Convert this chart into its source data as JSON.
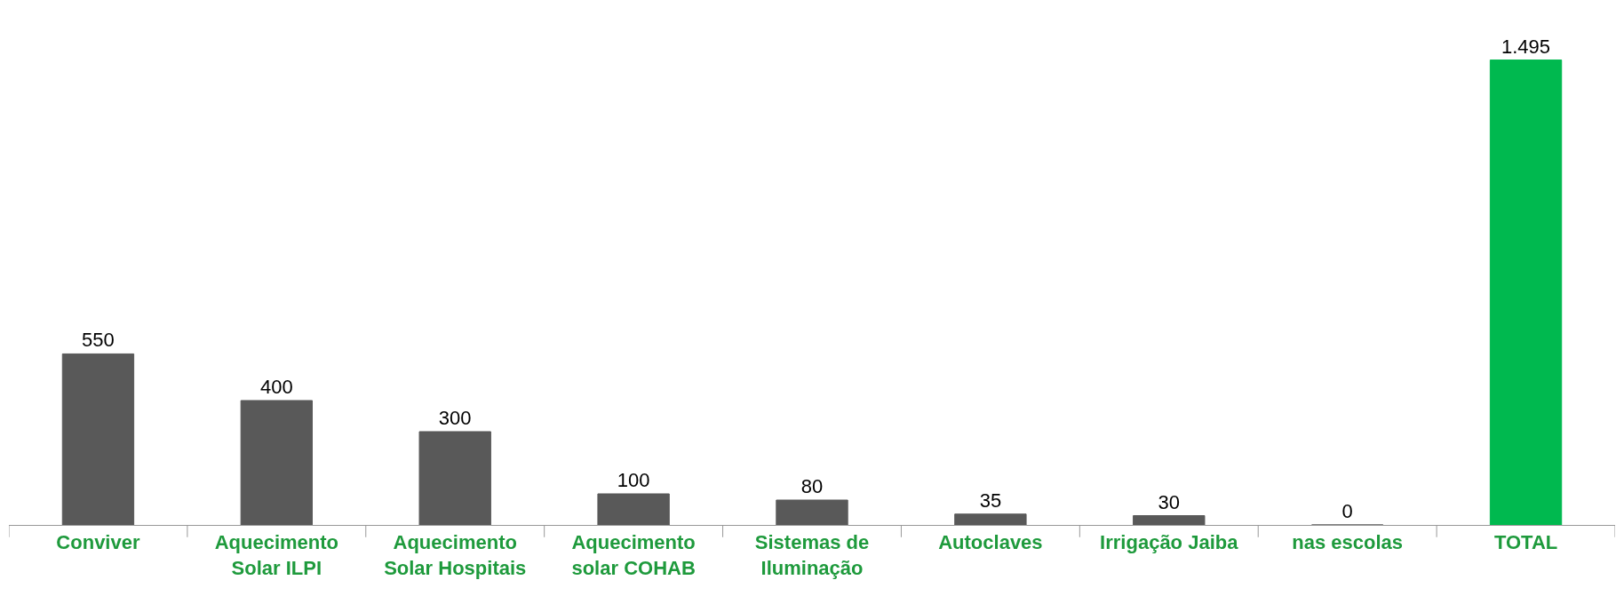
{
  "chart_data": {
    "type": "bar",
    "categories": [
      "Conviver",
      "Aquecimento Solar ILPI",
      "Aquecimento Solar Hospitais",
      "Aquecimento solar COHAB",
      "Sistemas de Iluminação",
      "Autoclaves",
      "Irrigação Jaiba",
      "nas escolas",
      "TOTAL"
    ],
    "values": [
      550,
      400,
      300,
      100,
      80,
      35,
      30,
      0,
      1495
    ],
    "colors": [
      "#595959",
      "#595959",
      "#595959",
      "#595959",
      "#595959",
      "#595959",
      "#595959",
      "#595959",
      "#00b94f"
    ],
    "value_labels": [
      "550",
      "400",
      "300",
      "100",
      "80",
      "35",
      "30",
      "0",
      "1.495"
    ],
    "grid": false,
    "legend": false
  }
}
